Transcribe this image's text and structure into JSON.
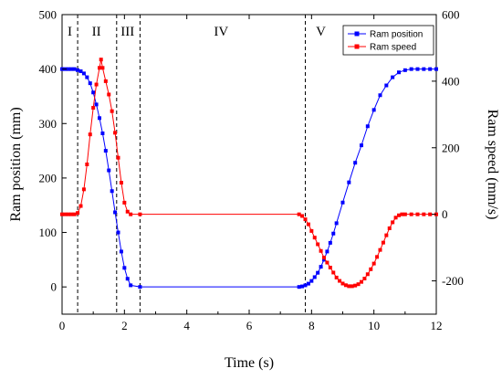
{
  "chart_data": {
    "type": "line",
    "xlabel": "Time (s)",
    "ylabel": "Ram position (mm)",
    "y2label": "Ram speed (mm/s)",
    "xlim": [
      0,
      12
    ],
    "ylim": [
      -50,
      500
    ],
    "y2lim": [
      -300,
      600
    ],
    "xticks": [
      0,
      2,
      4,
      6,
      8,
      10,
      12
    ],
    "yticks": [
      0,
      100,
      200,
      300,
      400,
      500
    ],
    "y2ticks": [
      -200,
      0,
      200,
      400,
      600
    ],
    "grid": false,
    "legend_position": "top-right",
    "phases": [
      {
        "label": "I",
        "x": 0.25
      },
      {
        "label": "II",
        "x": 1.1
      },
      {
        "label": "III",
        "x": 2.1
      },
      {
        "label": "IV",
        "x": 5.1
      },
      {
        "label": "V",
        "x": 8.3
      }
    ],
    "phase_boundaries": [
      0.5,
      1.75,
      2.5,
      7.8
    ],
    "series": [
      {
        "name": "Ram position",
        "axis": "left",
        "color": "#0000ff",
        "marker": "square",
        "x": [
          0,
          0.1,
          0.2,
          0.3,
          0.4,
          0.5,
          0.6,
          0.7,
          0.8,
          0.9,
          1.0,
          1.1,
          1.2,
          1.3,
          1.4,
          1.5,
          1.6,
          1.7,
          1.8,
          1.9,
          2.0,
          2.1,
          2.2,
          2.5,
          7.6,
          7.7,
          7.8,
          7.9,
          8.0,
          8.1,
          8.2,
          8.3,
          8.4,
          8.5,
          8.6,
          8.7,
          8.8,
          9.0,
          9.2,
          9.4,
          9.6,
          9.8,
          10.0,
          10.2,
          10.4,
          10.6,
          10.8,
          11.0,
          11.2,
          11.4,
          11.6,
          11.8,
          12.0
        ],
        "y": [
          400,
          400,
          400,
          400,
          400,
          398,
          396,
          392,
          385,
          374,
          357,
          335,
          310,
          282,
          250,
          214,
          176,
          137,
          100,
          65,
          35,
          15,
          3,
          0,
          0,
          1,
          3,
          6,
          11,
          18,
          26,
          37,
          50,
          65,
          81,
          98,
          117,
          155,
          192,
          228,
          260,
          295,
          325,
          352,
          370,
          385,
          394,
          398,
          400,
          400,
          400,
          400,
          400
        ]
      },
      {
        "name": "Ram speed",
        "axis": "right",
        "color": "#ff0000",
        "marker": "square",
        "x": [
          0,
          0.1,
          0.2,
          0.3,
          0.4,
          0.5,
          0.6,
          0.7,
          0.8,
          0.9,
          1.0,
          1.1,
          1.2,
          1.25,
          1.3,
          1.4,
          1.5,
          1.6,
          1.7,
          1.8,
          1.9,
          2.0,
          2.1,
          2.2,
          2.5,
          7.6,
          7.7,
          7.8,
          7.9,
          8.0,
          8.1,
          8.2,
          8.3,
          8.4,
          8.5,
          8.6,
          8.7,
          8.8,
          8.9,
          9.0,
          9.1,
          9.2,
          9.3,
          9.4,
          9.5,
          9.6,
          9.7,
          9.8,
          9.9,
          10.0,
          10.1,
          10.2,
          10.3,
          10.4,
          10.5,
          10.6,
          10.7,
          10.8,
          10.9,
          11.0,
          11.2,
          11.4,
          11.6,
          11.8,
          12.0
        ],
        "y": [
          0,
          0,
          0,
          0,
          0,
          4,
          25,
          75,
          150,
          240,
          320,
          390,
          440,
          465,
          440,
          400,
          360,
          310,
          245,
          170,
          95,
          35,
          8,
          0,
          0,
          0,
          -5,
          -15,
          -30,
          -50,
          -70,
          -90,
          -110,
          -130,
          -145,
          -160,
          -175,
          -190,
          -200,
          -208,
          -213,
          -216,
          -216,
          -214,
          -210,
          -203,
          -193,
          -180,
          -165,
          -148,
          -128,
          -107,
          -85,
          -63,
          -42,
          -24,
          -10,
          -3,
          0,
          0,
          0,
          0,
          0,
          0,
          0
        ]
      }
    ]
  }
}
